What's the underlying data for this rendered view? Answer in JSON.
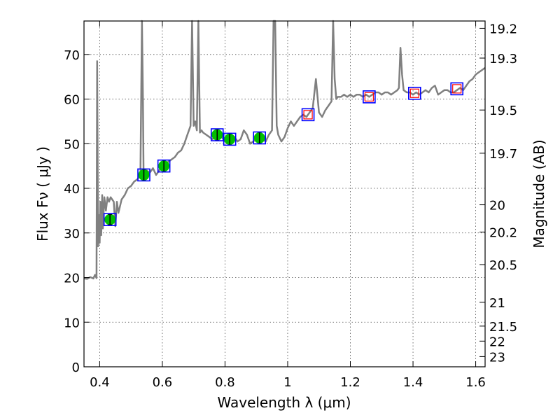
{
  "chart_data": {
    "type": "scatter",
    "xlabel": "Wavelength  λ (μm)",
    "ylabel": "Flux  Fν  ( μJy )",
    "ylabel_right": "Magnitude (AB)",
    "xlim": [
      0.35,
      1.63
    ],
    "ylim": [
      0,
      77.5
    ],
    "grid": true,
    "x_ticks": [
      0.4,
      0.6,
      0.8,
      1,
      1.2,
      1.4,
      1.6
    ],
    "x_tick_labels": [
      "0.4",
      "0.6",
      "0.8",
      "1",
      "1.2",
      "1.4",
      "1.6"
    ],
    "y_ticks": [
      0,
      10,
      20,
      30,
      40,
      50,
      60,
      70
    ],
    "y_tick_labels": [
      "0",
      "10",
      "20",
      "30",
      "40",
      "50",
      "60",
      "70"
    ],
    "mag_ticks": [
      19.2,
      19.3,
      19.5,
      19.7,
      20,
      20.2,
      20.5,
      21,
      21.5,
      22,
      23
    ],
    "mag_tick_labels": [
      "19.2",
      "19.3",
      "19.5",
      "19.7",
      "20",
      "20.2",
      "20.5",
      "21",
      "21.5",
      "22",
      "23"
    ],
    "series": [
      {
        "name": "model_sed",
        "style": "line",
        "color": "#808080",
        "x": [
          0.35,
          0.36,
          0.37,
          0.38,
          0.385,
          0.39,
          0.392,
          0.395,
          0.398,
          0.4,
          0.402,
          0.405,
          0.408,
          0.41,
          0.415,
          0.42,
          0.425,
          0.43,
          0.435,
          0.44,
          0.445,
          0.45,
          0.455,
          0.46,
          0.47,
          0.48,
          0.49,
          0.5,
          0.51,
          0.52,
          0.53,
          0.535,
          0.538,
          0.54,
          0.55,
          0.56,
          0.57,
          0.58,
          0.59,
          0.6,
          0.61,
          0.62,
          0.63,
          0.64,
          0.65,
          0.66,
          0.67,
          0.68,
          0.69,
          0.695,
          0.7,
          0.705,
          0.71,
          0.715,
          0.72,
          0.725,
          0.73,
          0.74,
          0.75,
          0.76,
          0.77,
          0.78,
          0.79,
          0.8,
          0.81,
          0.82,
          0.83,
          0.84,
          0.85,
          0.86,
          0.87,
          0.88,
          0.89,
          0.9,
          0.91,
          0.92,
          0.93,
          0.94,
          0.95,
          0.955,
          0.96,
          0.965,
          0.97,
          0.98,
          0.99,
          1.0,
          1.01,
          1.02,
          1.03,
          1.04,
          1.05,
          1.06,
          1.07,
          1.08,
          1.09,
          1.1,
          1.11,
          1.12,
          1.13,
          1.14,
          1.145,
          1.15,
          1.155,
          1.16,
          1.17,
          1.18,
          1.19,
          1.2,
          1.21,
          1.22,
          1.23,
          1.24,
          1.25,
          1.26,
          1.27,
          1.28,
          1.29,
          1.3,
          1.31,
          1.32,
          1.33,
          1.34,
          1.35,
          1.355,
          1.36,
          1.365,
          1.37,
          1.38,
          1.39,
          1.4,
          1.41,
          1.42,
          1.43,
          1.44,
          1.45,
          1.46,
          1.47,
          1.48,
          1.49,
          1.5,
          1.51,
          1.52,
          1.53,
          1.54,
          1.55,
          1.56,
          1.57,
          1.58,
          1.59,
          1.6,
          1.61,
          1.62,
          1.63
        ],
        "y": [
          19.8,
          19.7,
          20.1,
          19.8,
          20.6,
          19.9,
          68.5,
          27.0,
          34.0,
          27.8,
          37.0,
          29.5,
          38.5,
          31.0,
          38.0,
          35.0,
          38.0,
          37.0,
          38.0,
          37.5,
          37.0,
          31.5,
          37.0,
          34.5,
          37.5,
          38.5,
          40.0,
          40.5,
          41.5,
          42.0,
          43.0,
          77.5,
          60.0,
          43.5,
          44.0,
          43.5,
          44.5,
          43.0,
          44.0,
          45.0,
          45.5,
          46.0,
          46.5,
          47.0,
          48.0,
          48.5,
          50.0,
          52.0,
          54.0,
          77.5,
          54.0,
          55.0,
          53.0,
          77.5,
          52.5,
          53.0,
          52.5,
          52.0,
          51.5,
          51.0,
          52.0,
          52.5,
          51.5,
          50.5,
          51.0,
          52.0,
          51.5,
          50.5,
          51.0,
          53.0,
          52.0,
          50.0,
          50.5,
          51.0,
          51.5,
          51.0,
          50.5,
          52.0,
          53.0,
          77.5,
          77.5,
          54.0,
          52.0,
          50.5,
          51.5,
          53.5,
          55.0,
          54.0,
          55.0,
          56.0,
          56.5,
          56.0,
          57.0,
          58.0,
          64.5,
          57.0,
          56.0,
          57.5,
          58.5,
          59.5,
          77.5,
          64.5,
          60.0,
          60.5,
          60.5,
          61.0,
          60.5,
          61.0,
          60.5,
          61.0,
          61.0,
          60.5,
          61.0,
          60.5,
          61.0,
          61.5,
          61.5,
          61.0,
          61.5,
          61.5,
          61.0,
          61.5,
          62.0,
          62.5,
          71.5,
          65.5,
          62.0,
          61.5,
          61.5,
          61.0,
          61.5,
          61.0,
          61.5,
          62.0,
          61.5,
          62.5,
          63.0,
          61.0,
          61.5,
          62.0,
          62.0,
          61.5,
          61.5,
          62.0,
          62.5,
          62.0,
          63.0,
          64.0,
          64.5,
          65.5,
          66.0,
          66.5,
          67.0
        ]
      },
      {
        "name": "observed_photometry",
        "style": "marker",
        "color": "#00bf00",
        "x": [
          0.433,
          0.541,
          0.605,
          0.775,
          0.815,
          0.91
        ],
        "y": [
          33.0,
          43.0,
          45.0,
          52.0,
          51.0,
          51.3
        ],
        "yerr": [
          1.2,
          1.3,
          1.3,
          1.3,
          1.3,
          1.3
        ]
      },
      {
        "name": "model_photometry",
        "style": "box",
        "color": "#0000ff",
        "x": [
          0.433,
          0.541,
          0.605,
          0.775,
          0.815,
          0.91,
          1.065,
          1.26,
          1.405,
          1.54
        ],
        "y": [
          33.0,
          43.0,
          45.0,
          52.0,
          51.0,
          51.3,
          56.5,
          60.5,
          61.3,
          62.3
        ]
      },
      {
        "name": "upper_limits",
        "style": "open-square",
        "color": "#ff0000",
        "x": [
          1.065,
          1.26,
          1.405,
          1.54
        ],
        "y": [
          56.5,
          60.5,
          61.3,
          62.3
        ]
      }
    ]
  }
}
